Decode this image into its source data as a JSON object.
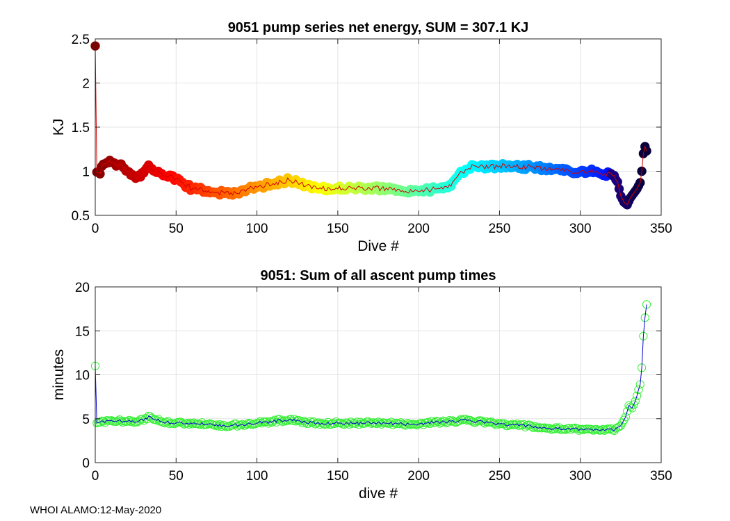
{
  "footer": "WHOI ALAMO:12-May-2020",
  "chart_data": [
    {
      "type": "scatter",
      "title": "9051 pump series net energy, SUM = 307.1 KJ",
      "xlabel": "Dive #",
      "ylabel": "KJ",
      "xlim": [
        0,
        350
      ],
      "ylim": [
        0.5,
        2.5
      ],
      "xticks": [
        0,
        50,
        100,
        150,
        200,
        250,
        300,
        350
      ],
      "yticks": [
        0.5,
        1,
        1.5,
        2,
        2.5
      ],
      "grid": true,
      "line_color": "#d00000",
      "marker": "filled-circle",
      "colormap": "jet-reversed",
      "keypoints": [
        [
          0,
          2.42
        ],
        [
          1,
          0.99
        ],
        [
          2,
          0.99
        ],
        [
          3,
          0.97
        ],
        [
          5,
          1.08
        ],
        [
          10,
          1.1
        ],
        [
          15,
          1.08
        ],
        [
          20,
          1.0
        ],
        [
          25,
          0.92
        ],
        [
          30,
          0.98
        ],
        [
          33,
          1.07
        ],
        [
          40,
          0.98
        ],
        [
          50,
          0.92
        ],
        [
          55,
          0.85
        ],
        [
          60,
          0.8
        ],
        [
          70,
          0.78
        ],
        [
          80,
          0.75
        ],
        [
          85,
          0.73
        ],
        [
          90,
          0.78
        ],
        [
          100,
          0.82
        ],
        [
          110,
          0.86
        ],
        [
          115,
          0.88
        ],
        [
          120,
          0.9
        ],
        [
          125,
          0.87
        ],
        [
          130,
          0.83
        ],
        [
          140,
          0.8
        ],
        [
          150,
          0.8
        ],
        [
          160,
          0.81
        ],
        [
          170,
          0.8
        ],
        [
          180,
          0.81
        ],
        [
          190,
          0.78
        ],
        [
          200,
          0.77
        ],
        [
          210,
          0.8
        ],
        [
          215,
          0.8
        ],
        [
          220,
          0.83
        ],
        [
          225,
          0.97
        ],
        [
          230,
          1.02
        ],
        [
          235,
          1.06
        ],
        [
          240,
          1.05
        ],
        [
          250,
          1.06
        ],
        [
          260,
          1.05
        ],
        [
          270,
          1.05
        ],
        [
          280,
          1.02
        ],
        [
          290,
          1.0
        ],
        [
          300,
          1.0
        ],
        [
          310,
          1.0
        ],
        [
          315,
          0.97
        ],
        [
          320,
          0.95
        ],
        [
          323,
          0.88
        ],
        [
          325,
          0.72
        ],
        [
          327,
          0.65
        ],
        [
          329,
          0.62
        ],
        [
          331,
          0.7
        ],
        [
          333,
          0.75
        ],
        [
          335,
          0.8
        ],
        [
          337,
          0.87
        ],
        [
          338,
          1.0
        ],
        [
          339,
          1.2
        ],
        [
          340,
          1.28
        ],
        [
          341,
          1.23
        ]
      ]
    },
    {
      "type": "scatter",
      "title": "9051: Sum of all ascent pump times",
      "xlabel": "dive #",
      "ylabel": "minutes",
      "xlim": [
        0,
        350
      ],
      "ylim": [
        0,
        20
      ],
      "xticks": [
        0,
        50,
        100,
        150,
        200,
        250,
        300,
        350
      ],
      "yticks": [
        0,
        5,
        10,
        15,
        20
      ],
      "grid": true,
      "line_color": "#0000cc",
      "marker_color": "#33ee33",
      "marker": "open-circle",
      "keypoints": [
        [
          0,
          11.0
        ],
        [
          1,
          4.5
        ],
        [
          5,
          4.7
        ],
        [
          10,
          4.8
        ],
        [
          20,
          4.7
        ],
        [
          30,
          4.8
        ],
        [
          33,
          5.3
        ],
        [
          40,
          4.7
        ],
        [
          50,
          4.5
        ],
        [
          60,
          4.4
        ],
        [
          70,
          4.4
        ],
        [
          80,
          4.2
        ],
        [
          90,
          4.3
        ],
        [
          100,
          4.5
        ],
        [
          110,
          4.7
        ],
        [
          120,
          4.9
        ],
        [
          130,
          4.6
        ],
        [
          140,
          4.5
        ],
        [
          150,
          4.5
        ],
        [
          160,
          4.5
        ],
        [
          170,
          4.5
        ],
        [
          180,
          4.5
        ],
        [
          190,
          4.4
        ],
        [
          200,
          4.4
        ],
        [
          210,
          4.6
        ],
        [
          220,
          4.7
        ],
        [
          230,
          4.8
        ],
        [
          240,
          4.6
        ],
        [
          250,
          4.4
        ],
        [
          260,
          4.3
        ],
        [
          270,
          4.1
        ],
        [
          280,
          3.9
        ],
        [
          290,
          3.8
        ],
        [
          300,
          3.8
        ],
        [
          310,
          3.8
        ],
        [
          320,
          3.7
        ],
        [
          325,
          4.2
        ],
        [
          328,
          5.2
        ],
        [
          330,
          6.5
        ],
        [
          332,
          6.2
        ],
        [
          334,
          7.0
        ],
        [
          335,
          7.6
        ],
        [
          336,
          8.3
        ],
        [
          337,
          8.9
        ],
        [
          338,
          10.8
        ],
        [
          339,
          14.4
        ],
        [
          340,
          16.5
        ],
        [
          341,
          18.0
        ]
      ]
    }
  ]
}
